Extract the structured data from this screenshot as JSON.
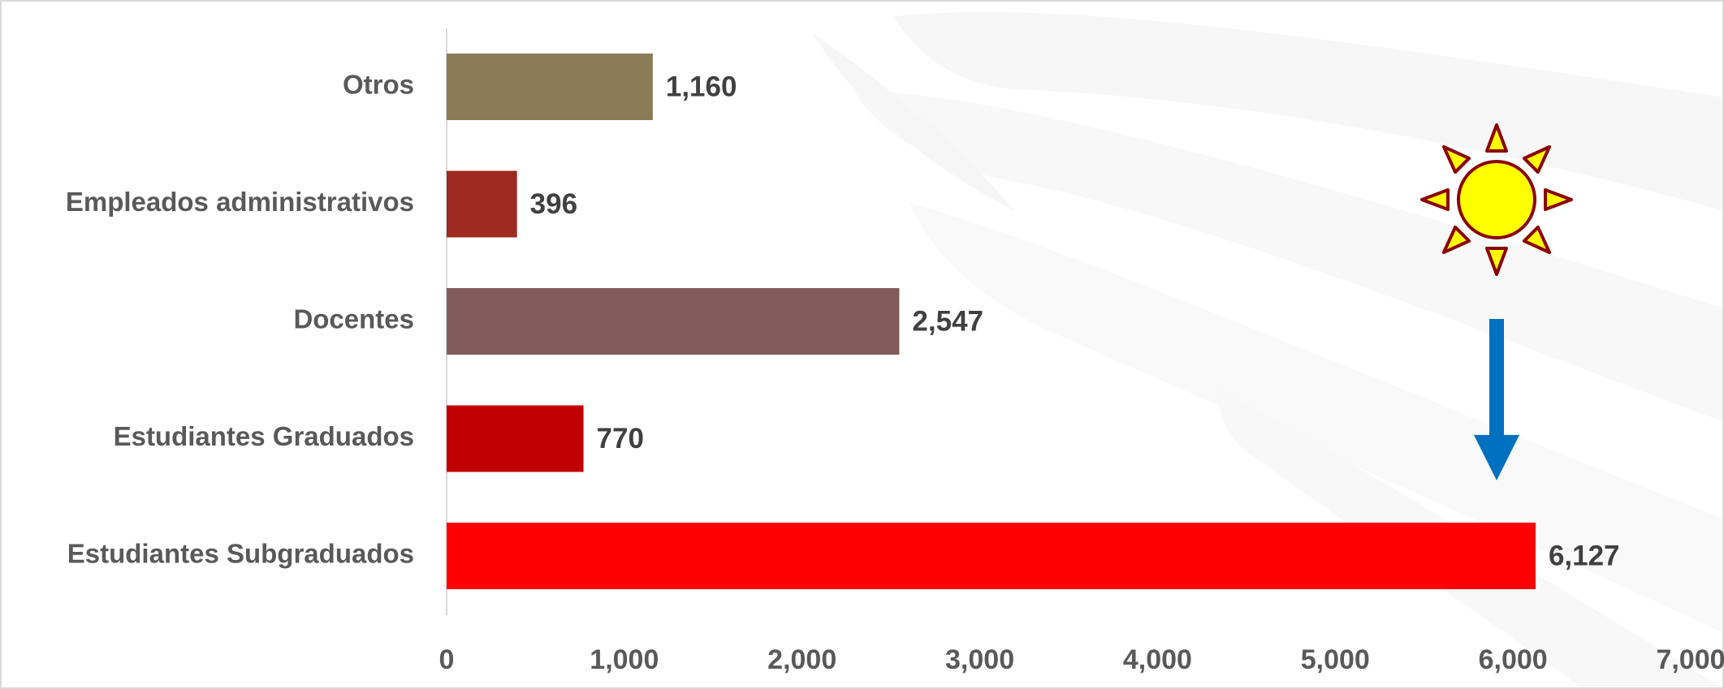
{
  "chart_data": {
    "type": "bar",
    "orientation": "horizontal",
    "categories": [
      "Otros",
      "Empleados administrativos",
      "Docentes",
      "Estudiantes Graduados",
      "Estudiantes Subgraduados"
    ],
    "values": [
      1160,
      396,
      2547,
      770,
      6127
    ],
    "value_labels": [
      "1,160",
      "396",
      "2,547",
      "770",
      "6,127"
    ],
    "bar_colors": [
      "#8B7B56",
      "#9C2A20",
      "#825C5C",
      "#C00000",
      "#FF0000"
    ],
    "xlim": [
      0,
      7000
    ],
    "x_ticks": [
      0,
      1000,
      2000,
      3000,
      4000,
      5000,
      6000,
      7000
    ],
    "x_tick_labels": [
      "0",
      "1,000",
      "2,000",
      "3,000",
      "4,000",
      "5,000",
      "6,000",
      "7,000"
    ],
    "title": "",
    "xlabel": "",
    "ylabel": "",
    "grid": false,
    "legend": "none"
  },
  "decorations": {
    "sun_icon": "sun-icon",
    "arrow_icon": "arrow-down-icon",
    "sun_fill": "#FFFF00",
    "sun_stroke": "#8B0000",
    "arrow_color": "#0070C0",
    "watermark": "feather-watermark"
  }
}
